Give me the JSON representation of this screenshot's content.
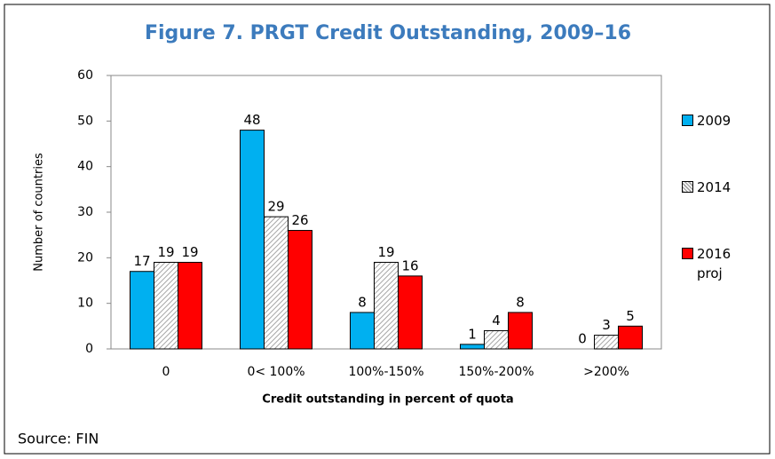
{
  "chart_data": {
    "type": "bar",
    "title": "Figure 7. PRGT Credit Outstanding, 2009–16",
    "x_label": "Credit outstanding in percent of quota",
    "y_label": "Number of countries",
    "source": "Source: FIN",
    "categories": [
      "0",
      "0< 100%",
      "100%-150%",
      "150%-200%",
      ">200%"
    ],
    "series": [
      {
        "name": "2009",
        "color": "#00b0f0",
        "values": [
          17,
          48,
          8,
          1,
          0
        ]
      },
      {
        "name": "2014",
        "color": "#a6a6a6",
        "pattern": "hatch",
        "values": [
          19,
          29,
          19,
          4,
          3
        ]
      },
      {
        "name": "2016 proj",
        "color": "#ff0000",
        "values": [
          19,
          26,
          16,
          8,
          5
        ]
      }
    ],
    "ylim": [
      0,
      60
    ],
    "yticks": [
      0,
      10,
      20,
      30,
      40,
      50,
      60
    ],
    "grid": false,
    "legend": "right"
  }
}
